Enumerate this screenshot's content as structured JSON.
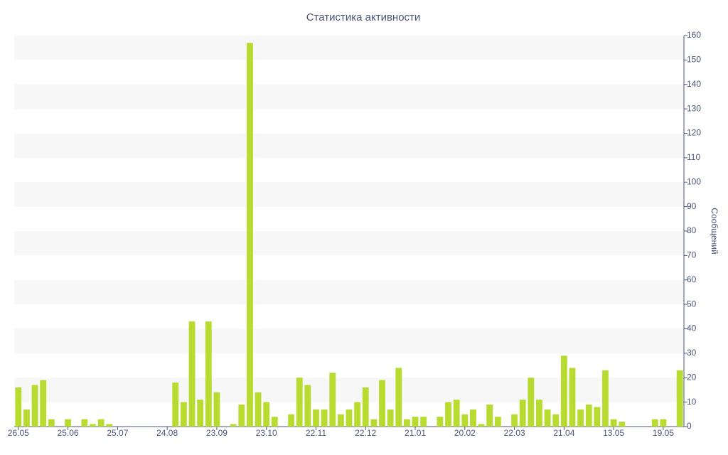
{
  "chart_data": {
    "type": "bar",
    "title": "Статистика активности",
    "y_label": "Сообщений",
    "categories": [
      "26.05",
      null,
      null,
      null,
      null,
      null,
      "25.06",
      null,
      null,
      null,
      null,
      null,
      "25.07",
      null,
      null,
      null,
      null,
      null,
      "24.08",
      null,
      null,
      null,
      null,
      null,
      "23.09",
      null,
      null,
      null,
      null,
      null,
      "23.10",
      null,
      null,
      null,
      null,
      null,
      "22.11",
      null,
      null,
      null,
      null,
      null,
      "22.12",
      null,
      null,
      null,
      null,
      null,
      "21.01",
      null,
      null,
      null,
      null,
      null,
      "20.02",
      null,
      null,
      null,
      null,
      null,
      "22.03",
      null,
      null,
      null,
      null,
      null,
      "21.04",
      null,
      null,
      null,
      null,
      null,
      "13.05",
      null,
      null,
      null,
      null,
      null,
      "19.05",
      null,
      null
    ],
    "values": [
      16,
      7,
      17,
      19,
      3,
      0,
      3,
      0,
      3,
      1,
      3,
      1,
      0,
      0,
      0,
      0,
      0,
      0,
      0,
      18,
      10,
      43,
      11,
      43,
      14,
      0,
      1,
      9,
      157,
      14,
      10,
      4,
      0,
      5,
      20,
      17,
      7,
      7,
      22,
      5,
      7,
      10,
      16,
      3,
      19,
      7,
      24,
      3,
      4,
      4,
      0,
      4,
      10,
      11,
      5,
      7,
      1,
      9,
      4,
      0,
      5,
      11,
      20,
      11,
      7,
      5,
      29,
      24,
      7,
      9,
      8,
      23,
      3,
      2,
      0,
      0,
      0,
      3,
      3,
      0,
      23
    ],
    "color": "#b7dc2f",
    "ylim": [
      0,
      160
    ],
    "yticks": [
      0,
      10,
      20,
      30,
      40,
      50,
      60,
      70,
      80,
      90,
      100,
      110,
      120,
      130,
      140,
      150,
      160
    ],
    "y_axis_side": "right",
    "grid": "bands"
  }
}
